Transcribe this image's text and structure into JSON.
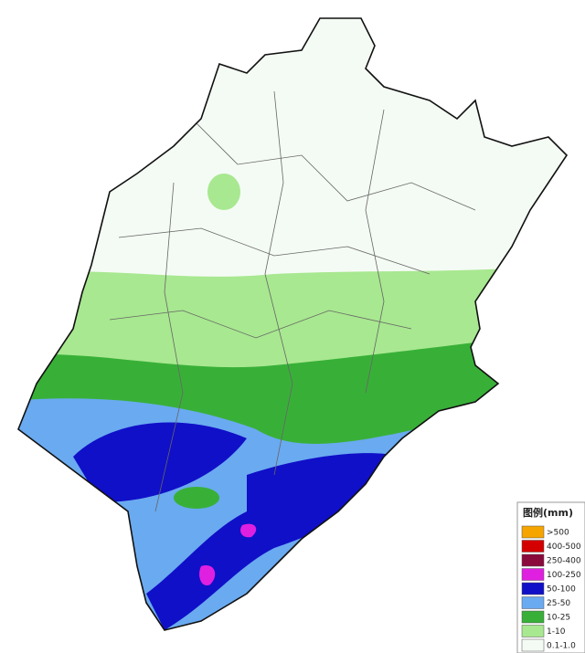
{
  "legend": {
    "title": "图例(mm)",
    "items": [
      {
        "label": ">500",
        "color": "#f5a400"
      },
      {
        "label": "400-500",
        "color": "#d40000"
      },
      {
        "label": "250-400",
        "color": "#8a0a3c"
      },
      {
        "label": "100-250",
        "color": "#e020e0"
      },
      {
        "label": "50-100",
        "color": "#1010c8"
      },
      {
        "label": "25-50",
        "color": "#6aaaf0"
      },
      {
        "label": "10-25",
        "color": "#38b038"
      },
      {
        "label": "1-10",
        "color": "#a8e890"
      },
      {
        "label": "0.1-1.0",
        "color": "#f4fbf4"
      }
    ]
  }
}
